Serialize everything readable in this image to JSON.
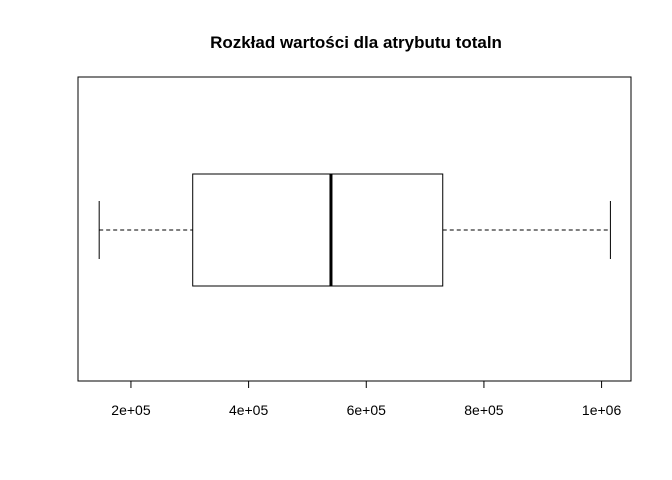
{
  "chart_data": {
    "type": "boxplot",
    "title": "Rozkład wartości dla atrybutu totaln",
    "orientation": "horizontal",
    "xlabel": "",
    "ylabel": "",
    "xlim": [
      110000,
      1050000
    ],
    "ticks": [
      {
        "value": 200000,
        "label": "2e+05"
      },
      {
        "value": 400000,
        "label": "4e+05"
      },
      {
        "value": 600000,
        "label": "6e+05"
      },
      {
        "value": 800000,
        "label": "8e+05"
      },
      {
        "value": 1000000,
        "label": "1e+06"
      }
    ],
    "box": {
      "min": 146000,
      "q1": 305000,
      "median": 540000,
      "q3": 730000,
      "max": 1015000
    },
    "grid": false
  }
}
